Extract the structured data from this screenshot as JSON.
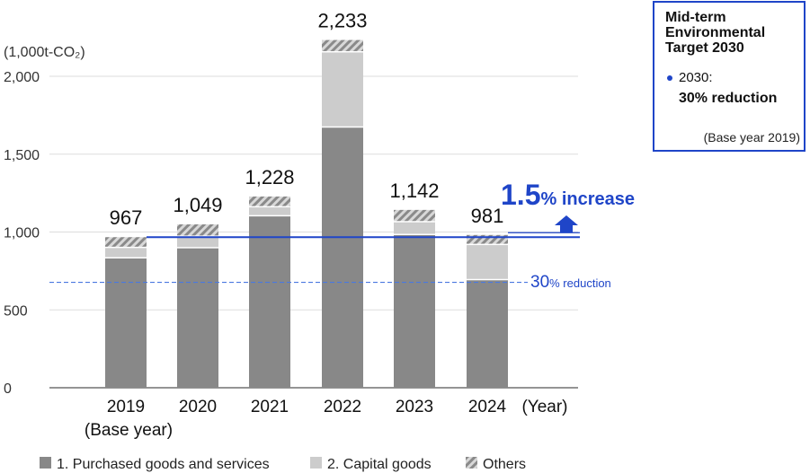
{
  "unit_label": "(1,000t-CO₂)",
  "x_unit_label": "(Year)",
  "base_year_label": "(Base year)",
  "increase_annotation": {
    "number": "1.5",
    "text": "% increase"
  },
  "reduction_annotation": {
    "number": "30",
    "text": "% reduction"
  },
  "target_box": {
    "title_lines": [
      "Mid-term",
      "Environmental",
      "Target 2030"
    ],
    "year": "2030:",
    "value": "30% reduction",
    "base": "(Base year 2019)"
  },
  "colors": {
    "purchased": "#888888",
    "capital": "#cccccc",
    "others_stripe": "#9a9a9a",
    "accent": "#1f45c8"
  },
  "chart_data": {
    "type": "bar",
    "stacked": true,
    "categories": [
      "2019",
      "2020",
      "2021",
      "2022",
      "2023",
      "2024"
    ],
    "series": [
      {
        "name": "1. Purchased goods and services",
        "values": [
          830,
          895,
          1100,
          1670,
          980,
          690
        ]
      },
      {
        "name": "2. Capital goods",
        "values": [
          67,
          74,
          58,
          483,
          82,
          226
        ]
      },
      {
        "name": "Others",
        "values": [
          70,
          80,
          70,
          80,
          80,
          65
        ]
      }
    ],
    "totals": [
      967,
      1049,
      1228,
      2233,
      1142,
      981
    ],
    "total_labels": [
      "967",
      "1,049",
      "1,228",
      "2,233",
      "1,142",
      "981"
    ],
    "yticks": [
      0,
      500,
      1000,
      1500,
      2000
    ],
    "ytick_labels": [
      "0",
      "500",
      "1,000",
      "1,500",
      "2,000"
    ],
    "ylim": [
      0,
      2200
    ],
    "reference_lines": [
      {
        "value": 967,
        "style": "solid"
      },
      {
        "value": 677,
        "style": "dashed"
      }
    ],
    "legend_position": "bottom"
  }
}
